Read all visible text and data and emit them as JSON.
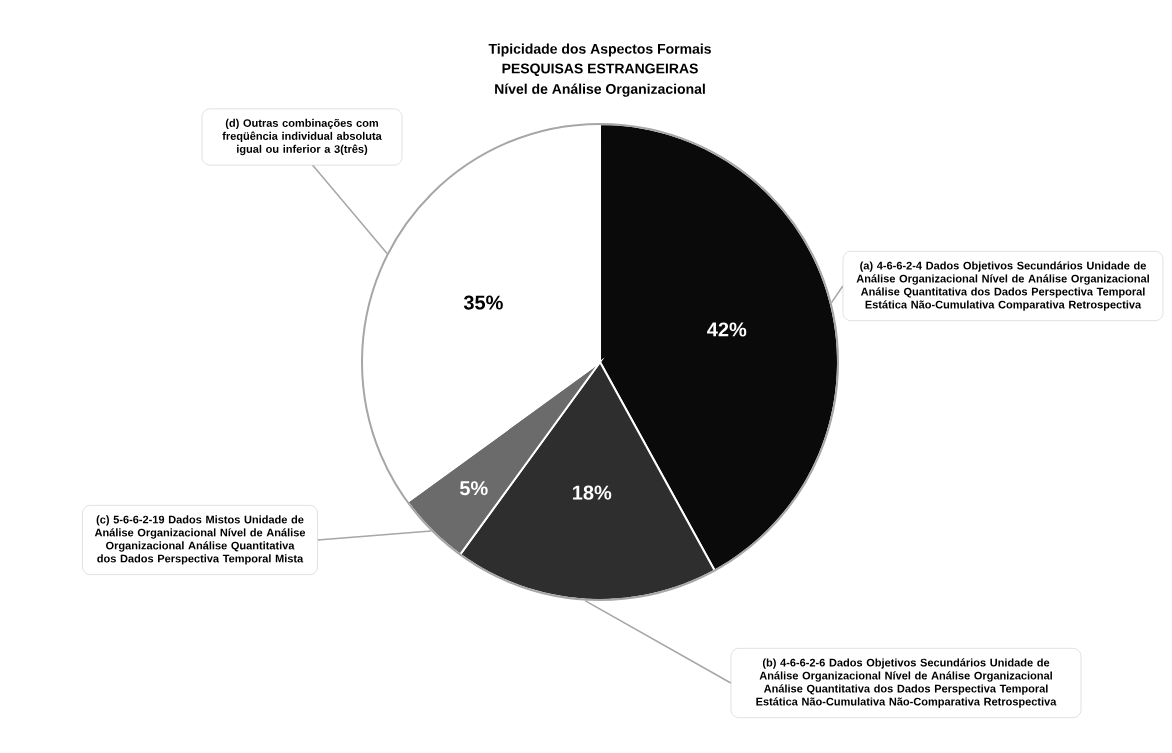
{
  "chart_data": {
    "type": "pie",
    "title": "Tipicidade dos Aspectos Formais",
    "subtitle": "PESQUISAS ESTRANGEIRAS",
    "annotations": [
      "Nível de Análise Organizacional"
    ],
    "categories": [
      "(a) 4-6-6-2-4 Dados Objetivos Secundários Unidade de Análise Organizacional Nível de Análise Organizacional Análise Quantitativa dos Dados Perspectiva Temporal Estática Não-Cumulativa Comparativa Retrospectiva",
      "(b) 4-6-6-2-6 Dados Objetivos Secundários Unidade de Análise Organizacional Nível de Análise Organizacional Análise Quantitativa dos Dados Perspectiva Temporal Estática Não-Cumulativa Não-Comparativa Retrospectiva",
      "(c) 5-6-6-2-19 Dados Mistos Unidade de Análise Organizacional Nível de Análise Organizacional Análise Quantitativa dos Dados Perspectiva Temporal Mista",
      "(d) Outras combinações com freqüência individual absoluta igual ou inferior a 3(três)"
    ],
    "values": [
      42,
      18,
      5,
      35
    ],
    "value_labels": [
      "42%",
      "18%",
      "5%",
      "35%"
    ],
    "colors": [
      "#0a0a0a",
      "#2e2e2e",
      "#6b6b6b",
      "#ffffff"
    ]
  }
}
